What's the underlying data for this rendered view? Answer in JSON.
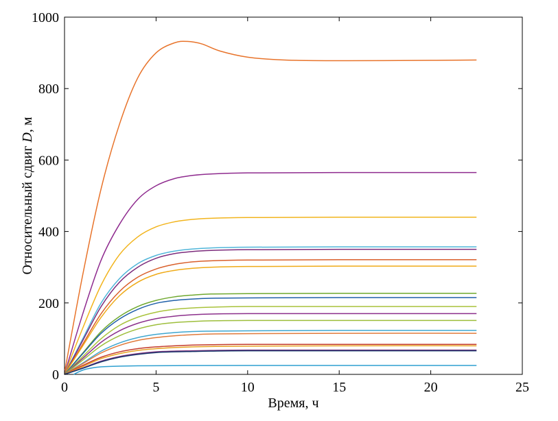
{
  "chart_data": {
    "type": "line",
    "title": "",
    "xlabel": "Время, ч",
    "ylabel_prefix": "Относительный сдвиг ",
    "ylabel_symbol": "D",
    "ylabel_suffix": ", м",
    "xlim": [
      0,
      25
    ],
    "ylim": [
      0,
      1000
    ],
    "xticks": [
      0,
      5,
      10,
      15,
      20,
      25
    ],
    "yticks": [
      0,
      200,
      400,
      600,
      800,
      1000
    ],
    "grid": false,
    "legend": "none",
    "series": [
      {
        "color": "#E8732A",
        "values": [
          [
            0,
            5
          ],
          [
            1,
            280
          ],
          [
            2,
            520
          ],
          [
            3,
            700
          ],
          [
            4,
            830
          ],
          [
            5,
            900
          ],
          [
            6,
            928
          ],
          [
            6.7,
            932
          ],
          [
            7.5,
            925
          ],
          [
            8.5,
            905
          ],
          [
            10,
            888
          ],
          [
            12,
            880
          ],
          [
            15,
            878
          ],
          [
            20,
            879
          ],
          [
            22.5,
            880
          ]
        ]
      },
      {
        "color": "#8E2A8E",
        "values": [
          [
            0,
            0
          ],
          [
            1,
            170
          ],
          [
            2,
            320
          ],
          [
            3,
            420
          ],
          [
            4,
            490
          ],
          [
            5,
            528
          ],
          [
            6,
            548
          ],
          [
            7,
            557
          ],
          [
            8,
            561
          ],
          [
            10,
            564
          ],
          [
            15,
            565
          ],
          [
            22.5,
            565
          ]
        ]
      },
      {
        "color": "#F2B41C",
        "values": [
          [
            0,
            0
          ],
          [
            1,
            130
          ],
          [
            2,
            250
          ],
          [
            3,
            335
          ],
          [
            4,
            385
          ],
          [
            5,
            413
          ],
          [
            6,
            427
          ],
          [
            7,
            434
          ],
          [
            8,
            437
          ],
          [
            10,
            439
          ],
          [
            15,
            440
          ],
          [
            22.5,
            440
          ]
        ]
      },
      {
        "color": "#4FB5D9",
        "values": [
          [
            0,
            0
          ],
          [
            1,
            100
          ],
          [
            2,
            200
          ],
          [
            3,
            268
          ],
          [
            4,
            310
          ],
          [
            5,
            333
          ],
          [
            6,
            345
          ],
          [
            7,
            351
          ],
          [
            8,
            354
          ],
          [
            10,
            356
          ],
          [
            15,
            357
          ],
          [
            22.5,
            357
          ]
        ]
      },
      {
        "color": "#7B2A7B",
        "values": [
          [
            0,
            0
          ],
          [
            1,
            95
          ],
          [
            2,
            190
          ],
          [
            3,
            258
          ],
          [
            4,
            300
          ],
          [
            5,
            325
          ],
          [
            6,
            338
          ],
          [
            7,
            344
          ],
          [
            8,
            347
          ],
          [
            10,
            349
          ],
          [
            15,
            350
          ],
          [
            22.5,
            350
          ]
        ]
      },
      {
        "color": "#D95F2B",
        "values": [
          [
            0,
            0
          ],
          [
            1,
            85
          ],
          [
            2,
            170
          ],
          [
            3,
            232
          ],
          [
            4,
            272
          ],
          [
            5,
            295
          ],
          [
            6,
            308
          ],
          [
            7,
            315
          ],
          [
            8,
            318
          ],
          [
            10,
            320
          ],
          [
            15,
            321
          ],
          [
            22.5,
            321
          ]
        ]
      },
      {
        "color": "#EFAA17",
        "values": [
          [
            0,
            0
          ],
          [
            1,
            80
          ],
          [
            2,
            160
          ],
          [
            3,
            220
          ],
          [
            4,
            258
          ],
          [
            5,
            280
          ],
          [
            6,
            291
          ],
          [
            7,
            297
          ],
          [
            8,
            300
          ],
          [
            10,
            302
          ],
          [
            15,
            303
          ],
          [
            22.5,
            303
          ]
        ]
      },
      {
        "color": "#6FA82E",
        "values": [
          [
            0,
            0
          ],
          [
            1,
            60
          ],
          [
            2,
            120
          ],
          [
            3,
            162
          ],
          [
            4,
            190
          ],
          [
            5,
            207
          ],
          [
            6,
            217
          ],
          [
            7,
            222
          ],
          [
            8,
            225
          ],
          [
            10,
            226
          ],
          [
            15,
            227
          ],
          [
            22.5,
            227
          ]
        ]
      },
      {
        "color": "#1F5FA8",
        "values": [
          [
            0,
            0
          ],
          [
            1,
            58
          ],
          [
            2,
            115
          ],
          [
            3,
            155
          ],
          [
            4,
            182
          ],
          [
            5,
            199
          ],
          [
            6,
            207
          ],
          [
            7,
            211
          ],
          [
            8,
            213
          ],
          [
            10,
            214
          ],
          [
            15,
            215
          ],
          [
            22.5,
            215
          ]
        ]
      },
      {
        "color": "#A8C23A",
        "values": [
          [
            0,
            0
          ],
          [
            1,
            50
          ],
          [
            2,
            100
          ],
          [
            3,
            137
          ],
          [
            4,
            160
          ],
          [
            5,
            174
          ],
          [
            6,
            182
          ],
          [
            7,
            186
          ],
          [
            8,
            188
          ],
          [
            10,
            190
          ],
          [
            15,
            190
          ],
          [
            22.5,
            190
          ]
        ]
      },
      {
        "color": "#8B2F8B",
        "values": [
          [
            0,
            0
          ],
          [
            1,
            45
          ],
          [
            2,
            90
          ],
          [
            3,
            122
          ],
          [
            4,
            143
          ],
          [
            5,
            156
          ],
          [
            6,
            163
          ],
          [
            7,
            167
          ],
          [
            8,
            169
          ],
          [
            10,
            170
          ],
          [
            15,
            170
          ],
          [
            22.5,
            170
          ]
        ]
      },
      {
        "color": "#9DBE3B",
        "values": [
          [
            0,
            0
          ],
          [
            1,
            40
          ],
          [
            2,
            80
          ],
          [
            3,
            108
          ],
          [
            4,
            127
          ],
          [
            5,
            139
          ],
          [
            6,
            145
          ],
          [
            7,
            148
          ],
          [
            8,
            150
          ],
          [
            10,
            151
          ],
          [
            15,
            151
          ],
          [
            22.5,
            151
          ]
        ]
      },
      {
        "color": "#3EA6CF",
        "values": [
          [
            0,
            0
          ],
          [
            1,
            32
          ],
          [
            2,
            65
          ],
          [
            3,
            88
          ],
          [
            4,
            103
          ],
          [
            5,
            112
          ],
          [
            6,
            117
          ],
          [
            7,
            120
          ],
          [
            8,
            121
          ],
          [
            10,
            122
          ],
          [
            15,
            123
          ],
          [
            22.5,
            123
          ]
        ]
      },
      {
        "color": "#E07A3A",
        "values": [
          [
            0,
            0
          ],
          [
            1,
            30
          ],
          [
            2,
            60
          ],
          [
            3,
            81
          ],
          [
            4,
            95
          ],
          [
            5,
            103
          ],
          [
            6,
            108
          ],
          [
            7,
            111
          ],
          [
            8,
            113
          ],
          [
            10,
            114
          ],
          [
            15,
            115
          ],
          [
            22.5,
            115
          ]
        ]
      },
      {
        "color": "#C43A2A",
        "values": [
          [
            0,
            0
          ],
          [
            1,
            25
          ],
          [
            2,
            48
          ],
          [
            3,
            63
          ],
          [
            4,
            72
          ],
          [
            5,
            77
          ],
          [
            6,
            80
          ],
          [
            7,
            82
          ],
          [
            8,
            83
          ],
          [
            10,
            84
          ],
          [
            15,
            84
          ],
          [
            22.5,
            84
          ]
        ]
      },
      {
        "color": "#E6A020",
        "values": [
          [
            0,
            0
          ],
          [
            1,
            22
          ],
          [
            2,
            44
          ],
          [
            3,
            58
          ],
          [
            4,
            67
          ],
          [
            5,
            72
          ],
          [
            6,
            75
          ],
          [
            7,
            77
          ],
          [
            8,
            78
          ],
          [
            10,
            79
          ],
          [
            15,
            80
          ],
          [
            22.5,
            80
          ]
        ]
      },
      {
        "color": "#7A2A7A",
        "values": [
          [
            0,
            0
          ],
          [
            1,
            18
          ],
          [
            2,
            37
          ],
          [
            3,
            50
          ],
          [
            4,
            58
          ],
          [
            5,
            63
          ],
          [
            6,
            65
          ],
          [
            7,
            66
          ],
          [
            8,
            67
          ],
          [
            10,
            68
          ],
          [
            15,
            68
          ],
          [
            22.5,
            68
          ]
        ]
      },
      {
        "color": "#1A3A6E",
        "values": [
          [
            0,
            0
          ],
          [
            1,
            17
          ],
          [
            2,
            35
          ],
          [
            3,
            48
          ],
          [
            4,
            56
          ],
          [
            5,
            61
          ],
          [
            6,
            63
          ],
          [
            7,
            64
          ],
          [
            8,
            65
          ],
          [
            10,
            66
          ],
          [
            15,
            66
          ],
          [
            22.5,
            66
          ]
        ]
      },
      {
        "color": "#2E9FD0",
        "values": [
          [
            0.5,
            0
          ],
          [
            1,
            12
          ],
          [
            1.5,
            18
          ],
          [
            2,
            21
          ],
          [
            3,
            23
          ],
          [
            4,
            24
          ],
          [
            6,
            24.5
          ],
          [
            10,
            25
          ],
          [
            22.5,
            25
          ]
        ]
      }
    ]
  }
}
